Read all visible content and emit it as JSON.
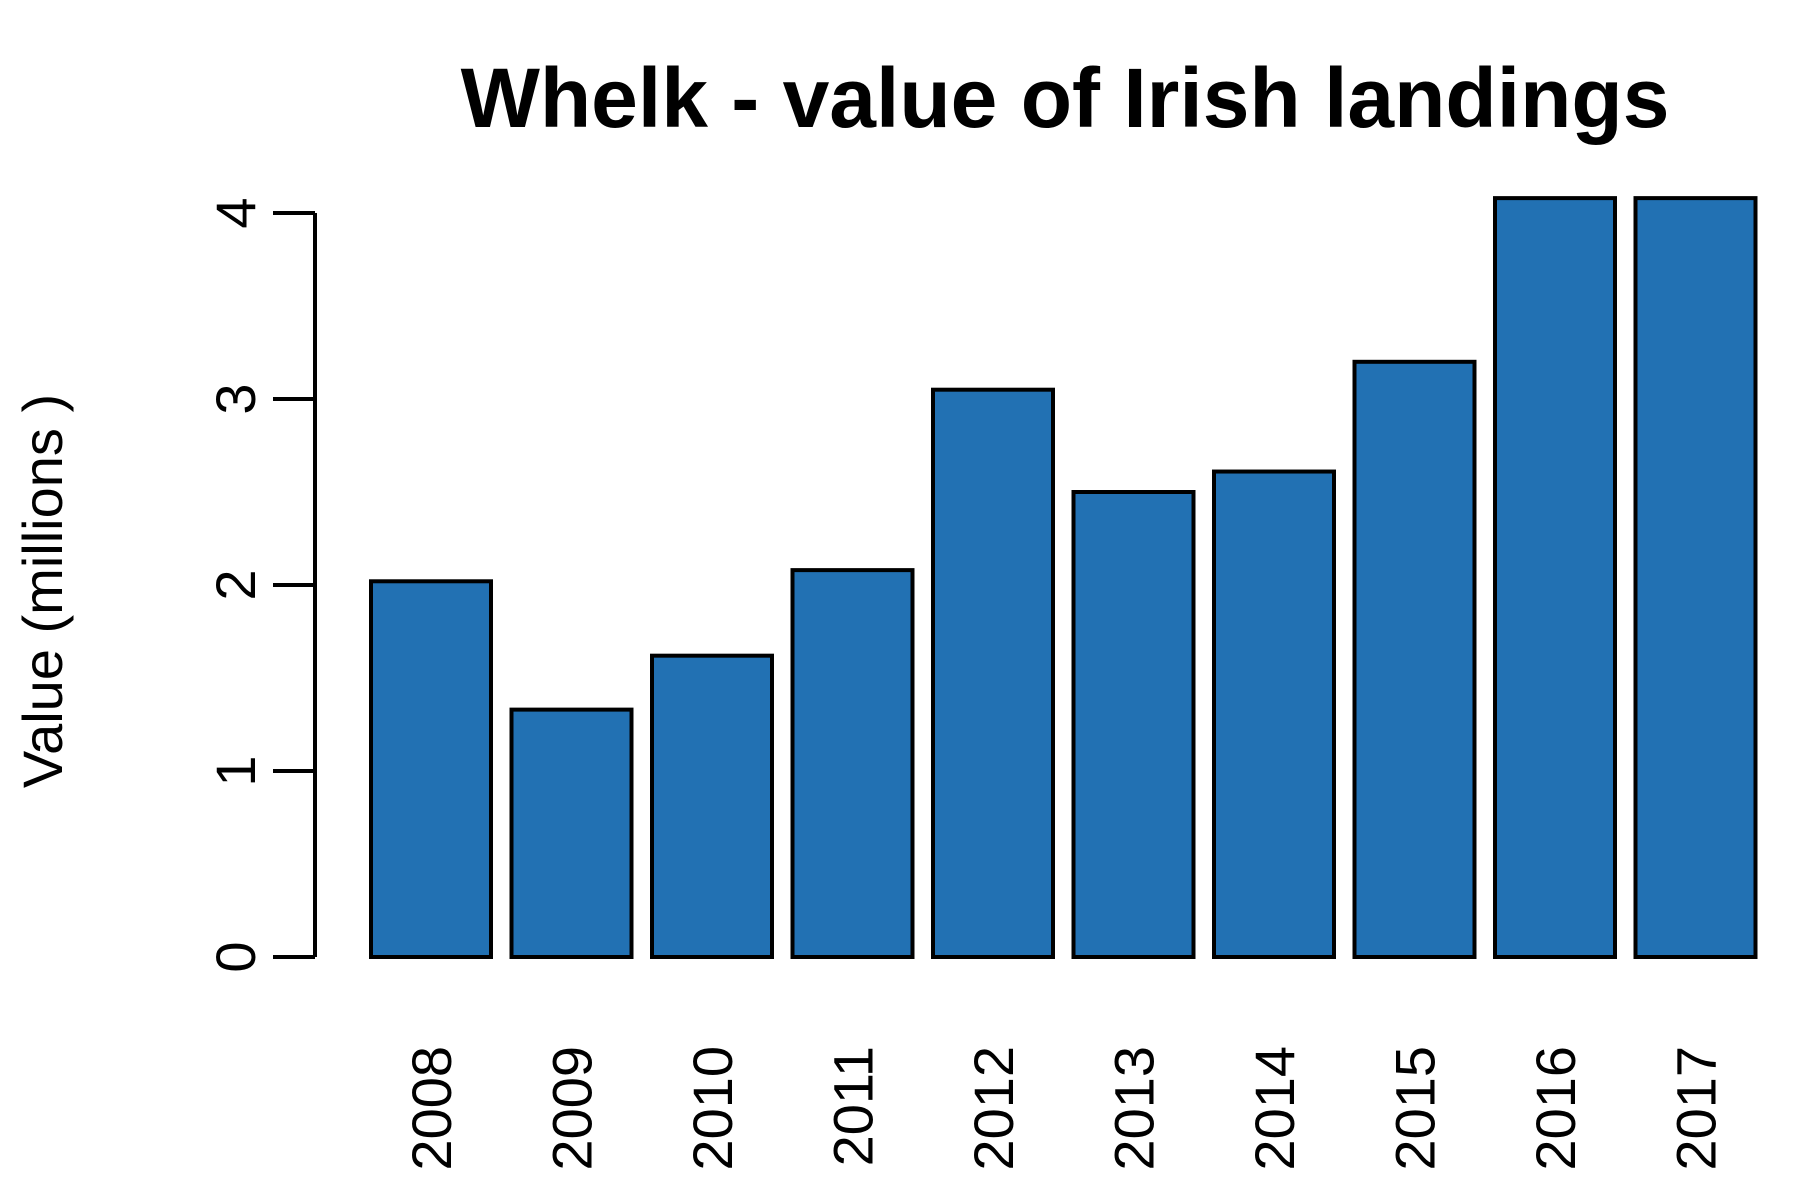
{
  "chart_data": {
    "type": "bar",
    "title": "Whelk - value of Irish landings",
    "xlabel": "",
    "ylabel": "Value (millions )",
    "categories": [
      "2008",
      "2009",
      "2010",
      "2011",
      "2012",
      "2013",
      "2014",
      "2015",
      "2016",
      "2017"
    ],
    "values": [
      2.02,
      1.33,
      1.62,
      2.08,
      3.05,
      2.5,
      2.61,
      3.2,
      4.08,
      4.08
    ],
    "yticks": [
      0,
      1,
      2,
      3,
      4
    ],
    "ylim": [
      0,
      4.08
    ],
    "grid": false,
    "legend": "none",
    "colors": {
      "bar_fill": "#2271b3",
      "bar_stroke": "#000000"
    }
  }
}
